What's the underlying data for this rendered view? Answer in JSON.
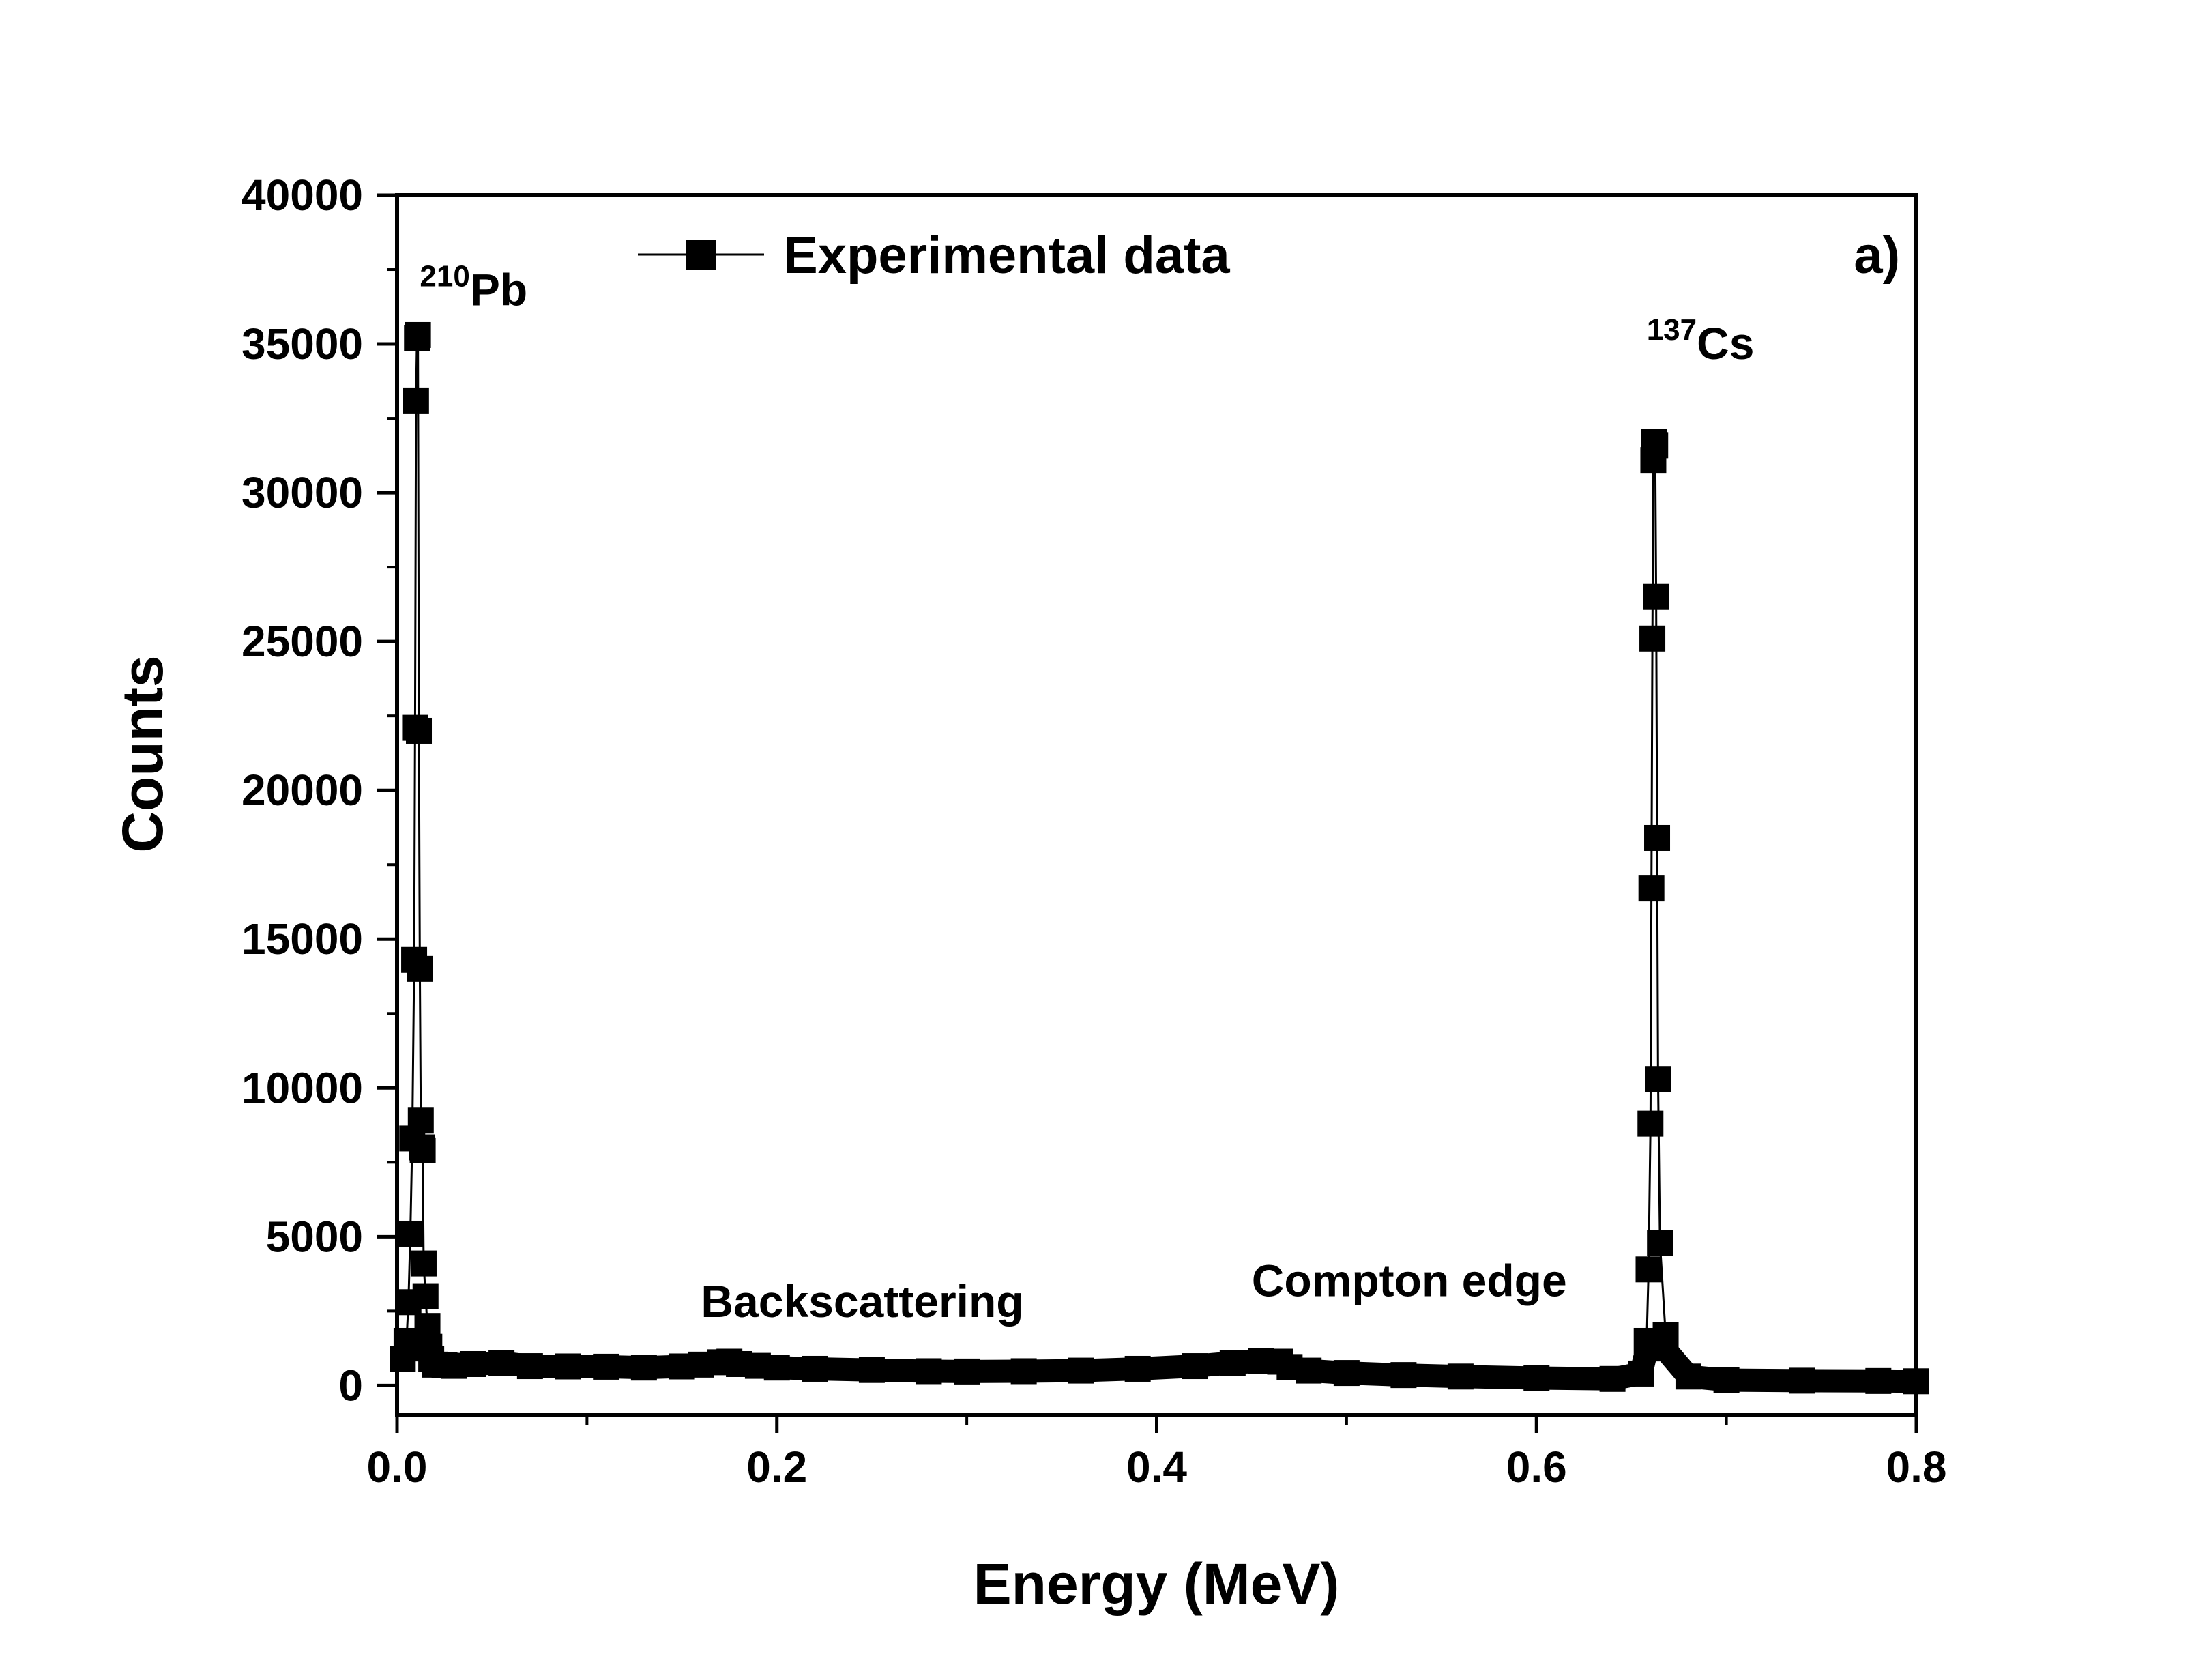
{
  "chart_data": {
    "type": "scatter",
    "xlabel": "Energy (MeV)",
    "ylabel": "Counts",
    "xlim": [
      0.0,
      0.8
    ],
    "ylim": [
      -1000,
      40000
    ],
    "xticks": [
      "0.0",
      "0.2",
      "0.4",
      "0.6",
      "0.8"
    ],
    "yticks": [
      "0",
      "5000",
      "10000",
      "15000",
      "20000",
      "25000",
      "30000",
      "35000",
      "40000"
    ],
    "panel_label": "a)",
    "legend": {
      "position": "top",
      "entries": [
        "Experimental data"
      ]
    },
    "grid": false,
    "series": [
      {
        "name": "Experimental data",
        "marker": "square",
        "color": "#000000",
        "x": [
          0.003,
          0.005,
          0.006,
          0.007,
          0.008,
          0.009,
          0.0095,
          0.01,
          0.0105,
          0.011,
          0.0115,
          0.012,
          0.0125,
          0.013,
          0.0135,
          0.014,
          0.015,
          0.016,
          0.017,
          0.018,
          0.02,
          0.025,
          0.03,
          0.04,
          0.055,
          0.07,
          0.09,
          0.11,
          0.13,
          0.15,
          0.16,
          0.17,
          0.175,
          0.18,
          0.19,
          0.2,
          0.22,
          0.25,
          0.28,
          0.3,
          0.33,
          0.36,
          0.39,
          0.42,
          0.44,
          0.455,
          0.465,
          0.47,
          0.48,
          0.5,
          0.53,
          0.56,
          0.6,
          0.64,
          0.655,
          0.658,
          0.659,
          0.66,
          0.6605,
          0.661,
          0.6615,
          0.662,
          0.6625,
          0.663,
          0.6635,
          0.664,
          0.665,
          0.668,
          0.68,
          0.7,
          0.74,
          0.78,
          0.8
        ],
        "y": [
          900,
          1500,
          2800,
          5100,
          8300,
          14300,
          22100,
          33100,
          35200,
          35300,
          22000,
          14000,
          8900,
          8000,
          7900,
          4100,
          3000,
          2000,
          1300,
          900,
          700,
          680,
          660,
          720,
          760,
          650,
          640,
          630,
          600,
          640,
          700,
          780,
          800,
          720,
          660,
          600,
          560,
          520,
          480,
          470,
          480,
          500,
          560,
          650,
          760,
          820,
          800,
          620,
          500,
          420,
          350,
          300,
          250,
          220,
          400,
          1500,
          3900,
          8800,
          16700,
          25100,
          31100,
          31700,
          31600,
          26500,
          18400,
          10300,
          4800,
          1700,
          300,
          180,
          160,
          150,
          140
        ]
      }
    ],
    "annotations": [
      {
        "sup": "210",
        "text": "Pb",
        "x": 0.012,
        "y": 36300
      },
      {
        "sup": "137",
        "text": "Cs",
        "x": 0.658,
        "y": 34500
      },
      {
        "text": "Backscattering",
        "x": 0.16,
        "y": 2300
      },
      {
        "text": "Compton edge",
        "x": 0.45,
        "y": 3000
      }
    ]
  }
}
